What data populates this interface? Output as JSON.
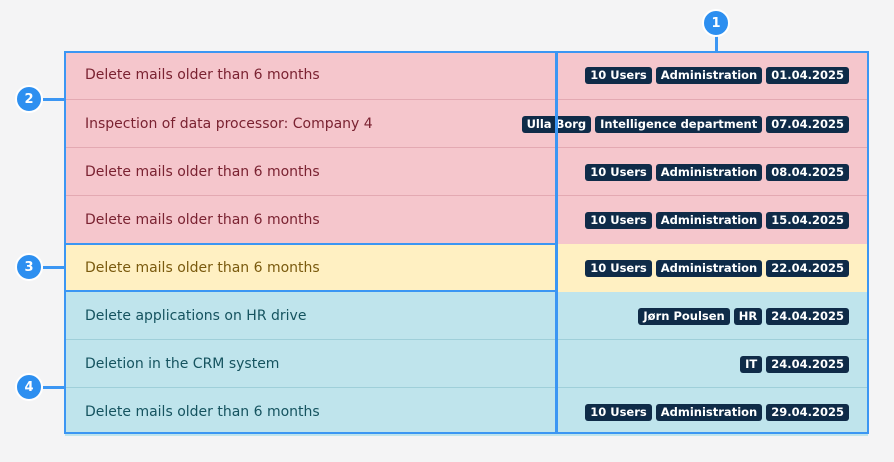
{
  "rows": [
    {
      "title": "Delete mails older than 6 months",
      "tags": [
        "10 Users",
        "Administration",
        "01.04.2025"
      ]
    },
    {
      "title": "Inspection of data processor: Company 4",
      "tags": [
        "Ulla Borg",
        "Intelligence department",
        "07.04.2025"
      ]
    },
    {
      "title": "Delete mails older than 6 months",
      "tags": [
        "10 Users",
        "Administration",
        "08.04.2025"
      ]
    },
    {
      "title": "Delete mails older than 6 months",
      "tags": [
        "10 Users",
        "Administration",
        "15.04.2025"
      ]
    },
    {
      "title": "Delete mails older than 6 months",
      "tags": [
        "10 Users",
        "Administration",
        "22.04.2025"
      ]
    },
    {
      "title": "Delete applications on HR drive",
      "tags": [
        "Jørn Poulsen",
        "HR",
        "24.04.2025"
      ]
    },
    {
      "title": "Deletion in the CRM system",
      "tags": [
        "IT",
        "24.04.2025"
      ]
    },
    {
      "title": "Delete mails older than 6 months",
      "tags": [
        "10 Users",
        "Administration",
        "29.04.2025"
      ]
    }
  ],
  "callouts": [
    "1",
    "2",
    "3",
    "4"
  ],
  "colors": {
    "overdue": "#f5c6cc",
    "today": "#fff0c2",
    "upcoming": "#bfe4ec",
    "tag": "#0f2b48",
    "highlight": "#3b96f3"
  }
}
